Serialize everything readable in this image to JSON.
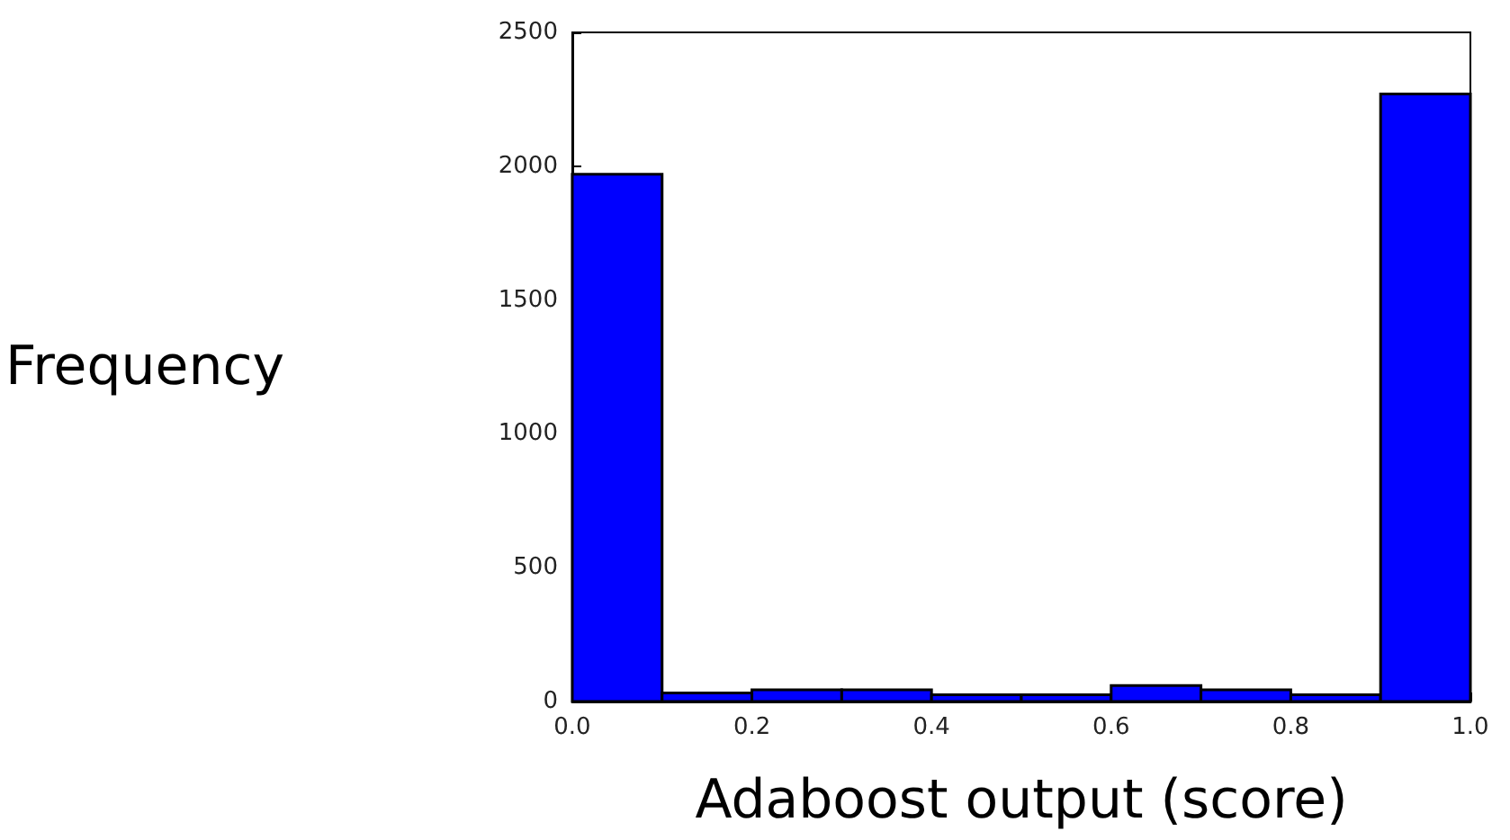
{
  "chart_data": {
    "type": "histogram",
    "xlabel": "Adaboost output (score)",
    "ylabel": "Frequency",
    "bins": [
      0.0,
      0.1,
      0.2,
      0.3,
      0.4,
      0.5,
      0.6,
      0.7,
      0.8,
      0.9,
      1.0
    ],
    "values": [
      1970,
      32,
      44,
      44,
      25,
      25,
      60,
      44,
      25,
      2270
    ],
    "color": "#0000ff",
    "xlim": [
      0,
      1
    ],
    "xticks": [
      {
        "value": 0,
        "label": "0.0"
      },
      {
        "value": 0.2,
        "label": "0.2"
      },
      {
        "value": 0.4,
        "label": "0.4"
      },
      {
        "value": 0.6,
        "label": "0.6"
      },
      {
        "value": 0.8,
        "label": "0.8"
      },
      {
        "value": 1,
        "label": "1.0"
      }
    ],
    "ylim": [
      0,
      2500
    ],
    "yticks": [
      0,
      500,
      1000,
      1500,
      2000,
      2500
    ],
    "grid": false
  }
}
